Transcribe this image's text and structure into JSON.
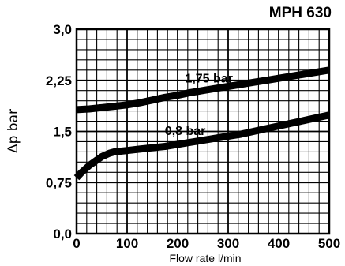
{
  "chart_data": {
    "type": "line",
    "title": "MPH 630",
    "xlabel": "Flow rate l/min",
    "ylabel": "Δp bar",
    "xlim": [
      0,
      500
    ],
    "ylim": [
      0,
      3.0
    ],
    "x_ticks": [
      "0",
      "100",
      "200",
      "300",
      "400",
      "500"
    ],
    "y_ticks": [
      "0,0",
      "0,75",
      "1,5",
      "2,25",
      "3,0"
    ],
    "grid": true,
    "series": [
      {
        "name": "1,75 bar",
        "x": [
          0,
          25,
          50,
          75,
          100,
          125,
          150,
          175,
          200,
          225,
          250,
          275,
          300,
          325,
          350,
          375,
          400,
          425,
          450,
          475,
          500
        ],
        "y": [
          1.82,
          1.83,
          1.85,
          1.87,
          1.89,
          1.92,
          1.96,
          2.0,
          2.03,
          2.07,
          2.1,
          2.13,
          2.16,
          2.19,
          2.22,
          2.25,
          2.28,
          2.31,
          2.34,
          2.37,
          2.4
        ]
      },
      {
        "name": "0,8 bar",
        "x": [
          0,
          10,
          25,
          40,
          50,
          65,
          75,
          100,
          125,
          150,
          175,
          200,
          225,
          250,
          275,
          300,
          325,
          350,
          375,
          400,
          425,
          450,
          475,
          500
        ],
        "y": [
          0.82,
          0.9,
          1.0,
          1.08,
          1.13,
          1.18,
          1.2,
          1.22,
          1.24,
          1.26,
          1.28,
          1.31,
          1.34,
          1.37,
          1.4,
          1.43,
          1.46,
          1.5,
          1.54,
          1.58,
          1.62,
          1.66,
          1.7,
          1.74
        ]
      }
    ]
  }
}
